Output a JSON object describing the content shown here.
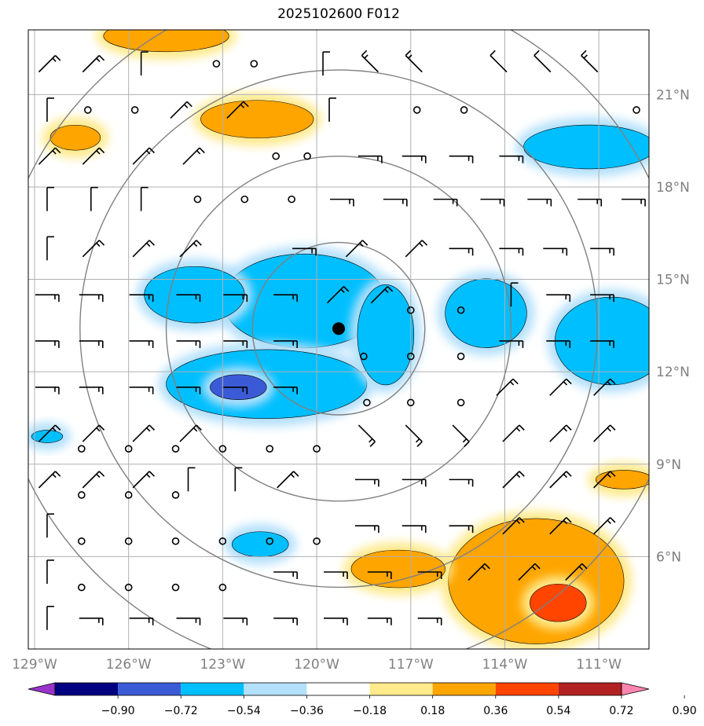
{
  "title": "2025102600 F012",
  "colors": {
    "grid": "#b0b0b0",
    "rings": "#808080",
    "frame": "#000000",
    "center_marker": "#000000",
    "levels": [
      "#9933cc",
      "#000080",
      "#3b5bd6",
      "#00bfff",
      "#b3e0fb",
      "#ffffff",
      "#ffea8c",
      "#ffa500",
      "#ff4500",
      "#b22222",
      "#ff85b0"
    ]
  },
  "axes": {
    "lon_range": [
      -129.2,
      -109.4
    ],
    "lat_range": [
      3.0,
      23.1
    ],
    "lon_ticks": [
      -129,
      -126,
      -123,
      -120,
      -117,
      -114,
      -111
    ],
    "lon_labels": [
      "129°W",
      "126°W",
      "123°W",
      "120°W",
      "117°W",
      "114°W",
      "111°W"
    ],
    "lat_ticks": [
      6,
      9,
      12,
      15,
      18,
      21
    ],
    "lat_labels": [
      "6°N",
      "9°N",
      "12°N",
      "15°N",
      "18°N",
      "21°N"
    ]
  },
  "center": {
    "lon": -119.3,
    "lat": 13.4
  },
  "range_rings_deg": [
    2.75,
    5.5,
    8.25,
    11.0
  ],
  "colorbar": {
    "tick_labels": [
      "−0.90",
      "−0.72",
      "−0.54",
      "−0.36",
      "−0.18",
      "0.18",
      "0.36",
      "0.54",
      "0.72",
      "0.90"
    ],
    "bounds": [
      -0.9,
      -0.72,
      -0.54,
      -0.36,
      -0.18,
      0.18,
      0.36,
      0.54,
      0.72,
      0.9
    ]
  },
  "chart_data": {
    "type": "map",
    "title": "2025102600 F012",
    "field": "shaded anomaly with wind barbs",
    "anomaly_patches": [
      {
        "region": "central-cyclone-band",
        "lon": -120.4,
        "lat": 14.3,
        "rx": 2.6,
        "ry": 1.5,
        "level": -0.45
      },
      {
        "region": "southwest-band",
        "lon": -121.6,
        "lat": 11.6,
        "rx": 3.2,
        "ry": 1.1,
        "level": -0.45
      },
      {
        "region": "southwest-band-core",
        "lon": -122.5,
        "lat": 11.5,
        "rx": 0.9,
        "ry": 0.4,
        "level": -0.63
      },
      {
        "region": "west-arm",
        "lon": -123.9,
        "lat": 14.5,
        "rx": 1.6,
        "ry": 0.9,
        "level": -0.45
      },
      {
        "region": "east-of-center",
        "lon": -117.8,
        "lat": 13.2,
        "rx": 0.9,
        "ry": 1.6,
        "level": -0.45
      },
      {
        "region": "east-cell",
        "lon": -114.6,
        "lat": 13.9,
        "rx": 1.3,
        "ry": 1.1,
        "level": -0.45
      },
      {
        "region": "east-edge-cell",
        "lon": -110.6,
        "lat": 13.0,
        "rx": 1.8,
        "ry": 1.4,
        "level": -0.45
      },
      {
        "region": "northeast-cell",
        "lon": -111.3,
        "lat": 19.3,
        "rx": 2.1,
        "ry": 0.7,
        "level": -0.45
      },
      {
        "region": "south-small-cell",
        "lon": -121.8,
        "lat": 6.4,
        "rx": 0.9,
        "ry": 0.4,
        "level": -0.45
      },
      {
        "region": "west-edge-cell",
        "lon": -128.6,
        "lat": 9.9,
        "rx": 0.5,
        "ry": 0.2,
        "level": -0.45
      },
      {
        "region": "north-positive",
        "lon": -121.9,
        "lat": 20.2,
        "rx": 1.8,
        "ry": 0.6,
        "level": 0.45
      },
      {
        "region": "top-positive",
        "lon": -124.8,
        "lat": 22.9,
        "rx": 2.0,
        "ry": 0.5,
        "level": 0.45
      },
      {
        "region": "northwest-positive",
        "lon": -127.7,
        "lat": 19.6,
        "rx": 0.8,
        "ry": 0.4,
        "level": 0.45
      },
      {
        "region": "southeast-positive",
        "lon": -113.0,
        "lat": 5.2,
        "rx": 2.8,
        "ry": 2.0,
        "level": 0.45
      },
      {
        "region": "southeast-core",
        "lon": -112.3,
        "lat": 4.5,
        "rx": 0.9,
        "ry": 0.6,
        "level": 0.63
      },
      {
        "region": "south-positive",
        "lon": -117.4,
        "lat": 5.6,
        "rx": 1.5,
        "ry": 0.6,
        "level": 0.45
      },
      {
        "region": "east-small-positive",
        "lon": -110.2,
        "lat": 8.5,
        "rx": 0.9,
        "ry": 0.3,
        "level": 0.45
      }
    ],
    "calm_points": [
      [
        -123.2,
        22.0
      ],
      [
        -122.0,
        22.0
      ],
      [
        -127.3,
        20.5
      ],
      [
        -125.8,
        20.5
      ],
      [
        -116.8,
        20.5
      ],
      [
        -115.3,
        20.5
      ],
      [
        -109.8,
        20.5
      ],
      [
        -121.3,
        19.0
      ],
      [
        -120.3,
        19.0
      ],
      [
        -123.8,
        17.6
      ],
      [
        -122.3,
        17.6
      ],
      [
        -120.8,
        17.6
      ],
      [
        -117.0,
        14.0
      ],
      [
        -115.4,
        14.0
      ],
      [
        -118.5,
        12.5
      ],
      [
        -117.0,
        12.5
      ],
      [
        -115.4,
        12.5
      ],
      [
        -118.4,
        11.0
      ],
      [
        -117.0,
        11.0
      ],
      [
        -115.4,
        11.0
      ],
      [
        -127.5,
        9.5
      ],
      [
        -126.0,
        9.5
      ],
      [
        -124.5,
        9.5
      ],
      [
        -123.0,
        9.5
      ],
      [
        -121.5,
        9.5
      ],
      [
        -120.0,
        9.5
      ],
      [
        -127.5,
        8.0
      ],
      [
        -126.0,
        8.0
      ],
      [
        -124.5,
        8.0
      ],
      [
        -127.5,
        6.5
      ],
      [
        -126.0,
        6.5
      ],
      [
        -124.5,
        6.5
      ],
      [
        -123.0,
        6.5
      ],
      [
        -121.5,
        6.5
      ],
      [
        -120.0,
        6.5
      ],
      [
        -127.5,
        5.0
      ],
      [
        -126.0,
        5.0
      ],
      [
        -124.5,
        5.0
      ],
      [
        -123.0,
        5.0
      ]
    ],
    "wind_barbs": [
      [
        -128.6,
        22.0,
        "NE",
        2
      ],
      [
        -127.2,
        22.0,
        "NE",
        2
      ],
      [
        -125.6,
        22.0,
        "N",
        1
      ],
      [
        -119.8,
        22.0,
        "N",
        1
      ],
      [
        -118.3,
        22.0,
        "NW",
        2
      ],
      [
        -116.9,
        22.0,
        "NW",
        2
      ],
      [
        -114.2,
        22.0,
        "NW",
        1
      ],
      [
        -112.8,
        22.0,
        "NW",
        1
      ],
      [
        -111.3,
        22.0,
        "NW",
        2
      ],
      [
        -128.6,
        20.5,
        "N",
        1
      ],
      [
        -124.4,
        20.5,
        "NE",
        2
      ],
      [
        -122.6,
        20.5,
        "NE",
        2
      ],
      [
        -119.6,
        20.5,
        "N",
        1
      ],
      [
        -128.6,
        19.0,
        "NE",
        2
      ],
      [
        -127.2,
        19.0,
        "NE",
        2
      ],
      [
        -125.6,
        19.0,
        "NE",
        2
      ],
      [
        -124.0,
        19.0,
        "NE",
        2
      ],
      [
        -118.3,
        19.0,
        "E",
        2
      ],
      [
        -116.9,
        19.0,
        "E",
        2
      ],
      [
        -115.4,
        19.0,
        "E",
        2
      ],
      [
        -113.8,
        19.0,
        "E",
        2
      ],
      [
        -128.6,
        17.6,
        "N",
        1
      ],
      [
        -127.2,
        17.6,
        "N",
        1
      ],
      [
        -125.6,
        17.6,
        "N",
        1
      ],
      [
        -119.2,
        17.6,
        "E",
        2
      ],
      [
        -117.5,
        17.6,
        "E",
        2
      ],
      [
        -115.9,
        17.6,
        "E",
        2
      ],
      [
        -114.4,
        17.6,
        "E",
        2
      ],
      [
        -112.9,
        17.6,
        "E",
        2
      ],
      [
        -111.3,
        17.6,
        "E",
        2
      ],
      [
        -109.9,
        17.6,
        "E",
        2
      ],
      [
        -128.6,
        16.0,
        "N",
        1
      ],
      [
        -127.2,
        16.0,
        "NE",
        2
      ],
      [
        -125.6,
        16.0,
        "NE",
        2
      ],
      [
        -124.1,
        16.0,
        "NE",
        2
      ],
      [
        -120.4,
        16.0,
        "E",
        2
      ],
      [
        -118.8,
        16.0,
        "NE",
        2
      ],
      [
        -116.9,
        16.0,
        "NE",
        2
      ],
      [
        -115.4,
        16.0,
        "E",
        2
      ],
      [
        -113.8,
        16.0,
        "E",
        2
      ],
      [
        -112.4,
        16.0,
        "E",
        2
      ],
      [
        -110.9,
        16.0,
        "E",
        2
      ],
      [
        -128.6,
        14.5,
        "E",
        2
      ],
      [
        -127.2,
        14.5,
        "E",
        2
      ],
      [
        -125.6,
        14.5,
        "E",
        2
      ],
      [
        -124.1,
        14.5,
        "E",
        2
      ],
      [
        -122.6,
        14.5,
        "E",
        2
      ],
      [
        -121.0,
        14.5,
        "E",
        2
      ],
      [
        -119.4,
        14.5,
        "NE",
        2
      ],
      [
        -118.0,
        14.5,
        "NE",
        2
      ],
      [
        -113.8,
        14.5,
        "N",
        1
      ],
      [
        -112.3,
        14.5,
        "E",
        2
      ],
      [
        -110.9,
        14.5,
        "E",
        2
      ],
      [
        -128.6,
        13.0,
        "E",
        2
      ],
      [
        -127.2,
        13.0,
        "E",
        2
      ],
      [
        -125.6,
        13.0,
        "E",
        2
      ],
      [
        -124.1,
        13.0,
        "E",
        2
      ],
      [
        -122.6,
        13.0,
        "E",
        2
      ],
      [
        -121.0,
        13.0,
        "E",
        2
      ],
      [
        -113.8,
        13.0,
        "E",
        2
      ],
      [
        -112.3,
        13.0,
        "E",
        2
      ],
      [
        -110.9,
        13.0,
        "E",
        2
      ],
      [
        -128.6,
        11.5,
        "E",
        2
      ],
      [
        -127.2,
        11.5,
        "E",
        2
      ],
      [
        -125.6,
        11.5,
        "E",
        2
      ],
      [
        -124.1,
        11.5,
        "E",
        2
      ],
      [
        -122.6,
        11.5,
        "E",
        2
      ],
      [
        -121.0,
        11.5,
        "E",
        2
      ],
      [
        -114.0,
        11.5,
        "NE",
        2
      ],
      [
        -112.3,
        11.5,
        "NE",
        2
      ],
      [
        -110.9,
        11.5,
        "NE",
        2
      ],
      [
        -128.6,
        10.0,
        "NE",
        2
      ],
      [
        -127.2,
        10.0,
        "NE",
        2
      ],
      [
        -125.6,
        10.0,
        "NE",
        2
      ],
      [
        -124.1,
        10.0,
        "NE",
        2
      ],
      [
        -118.4,
        10.0,
        "SE",
        2
      ],
      [
        -116.9,
        10.0,
        "SE",
        2
      ],
      [
        -115.4,
        10.0,
        "SE",
        2
      ],
      [
        -113.8,
        10.0,
        "NE",
        2
      ],
      [
        -112.3,
        10.0,
        "NE",
        2
      ],
      [
        -110.9,
        10.0,
        "NE",
        2
      ],
      [
        -128.6,
        8.5,
        "NE",
        2
      ],
      [
        -127.2,
        8.5,
        "NE",
        2
      ],
      [
        -125.6,
        8.5,
        "NE",
        2
      ],
      [
        -124.1,
        8.5,
        "N",
        1
      ],
      [
        -122.6,
        8.5,
        "N",
        1
      ],
      [
        -121.0,
        8.5,
        "NE",
        2
      ],
      [
        -118.4,
        8.5,
        "E",
        2
      ],
      [
        -116.9,
        8.5,
        "E",
        2
      ],
      [
        -115.4,
        8.5,
        "E",
        2
      ],
      [
        -113.8,
        8.5,
        "NE",
        2
      ],
      [
        -112.3,
        8.5,
        "NE",
        2
      ],
      [
        -110.9,
        8.5,
        "NE",
        2
      ],
      [
        -128.6,
        7.0,
        "N",
        1
      ],
      [
        -118.4,
        7.0,
        "E",
        2
      ],
      [
        -116.9,
        7.0,
        "E",
        2
      ],
      [
        -115.4,
        7.0,
        "E",
        2
      ],
      [
        -113.8,
        7.0,
        "NE",
        2
      ],
      [
        -112.3,
        7.0,
        "NE",
        2
      ],
      [
        -110.9,
        7.0,
        "NE",
        2
      ],
      [
        -128.6,
        5.5,
        "N",
        1
      ],
      [
        -121.0,
        5.5,
        "E",
        2
      ],
      [
        -119.4,
        5.5,
        "E",
        2
      ],
      [
        -118.0,
        5.5,
        "E",
        2
      ],
      [
        -116.4,
        5.5,
        "E",
        2
      ],
      [
        -114.9,
        5.5,
        "NE",
        2
      ],
      [
        -113.3,
        5.5,
        "NE",
        2
      ],
      [
        -111.8,
        5.5,
        "NE",
        2
      ],
      [
        -128.6,
        4.0,
        "N",
        1
      ],
      [
        -127.2,
        4.0,
        "E",
        2
      ],
      [
        -125.6,
        4.0,
        "E",
        2
      ],
      [
        -124.1,
        4.0,
        "E",
        2
      ],
      [
        -122.6,
        4.0,
        "E",
        2
      ],
      [
        -121.0,
        4.0,
        "E",
        2
      ],
      [
        -119.4,
        4.0,
        "E",
        2
      ],
      [
        -118.0,
        4.0,
        "E",
        2
      ],
      [
        -116.4,
        4.0,
        "E",
        2
      ]
    ]
  }
}
